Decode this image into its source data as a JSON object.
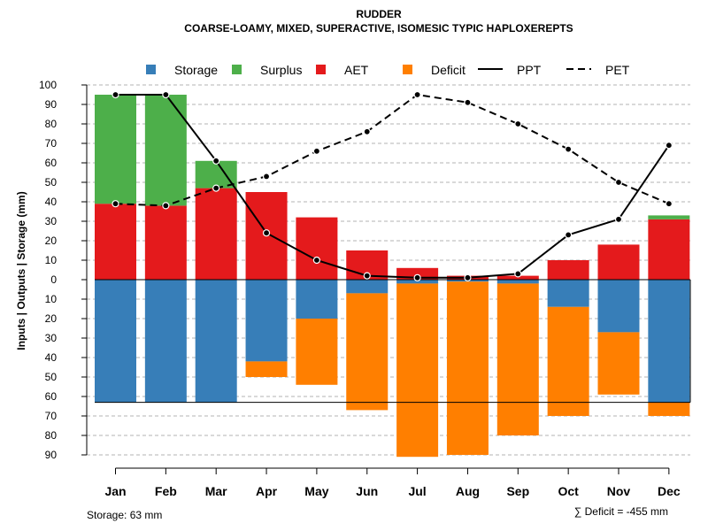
{
  "chart_data": {
    "type": "bar",
    "title": "RUDDER",
    "subtitle": "COARSE-LOAMY, MIXED, SUPERACTIVE, ISOMESIC TYPIC HAPLOXEREPTS",
    "ylabel": "Inputs | Outputs | Storage    (mm)",
    "categories": [
      "Jan",
      "Feb",
      "Mar",
      "Apr",
      "May",
      "Jun",
      "Jul",
      "Aug",
      "Sep",
      "Oct",
      "Nov",
      "Dec"
    ],
    "upper_ticks": [
      0,
      10,
      20,
      30,
      40,
      50,
      60,
      70,
      80,
      90,
      100
    ],
    "lower_ticks": [
      10,
      20,
      30,
      40,
      50,
      60,
      70,
      80,
      90
    ],
    "ylim": [
      -90,
      100
    ],
    "legend": [
      {
        "name": "Storage",
        "kind": "box",
        "color": "#377EB8"
      },
      {
        "name": "Surplus",
        "kind": "box",
        "color": "#4DAF4A"
      },
      {
        "name": "AET",
        "kind": "box",
        "color": "#E41A1C"
      },
      {
        "name": "Deficit",
        "kind": "box",
        "color": "#FF7F00"
      },
      {
        "name": "PPT",
        "kind": "solid",
        "color": "#000000"
      },
      {
        "name": "PET",
        "kind": "dashed",
        "color": "#000000"
      }
    ],
    "series": [
      {
        "name": "AET",
        "values": [
          39,
          38,
          47,
          45,
          32,
          15,
          6,
          2,
          2,
          10,
          18,
          31
        ]
      },
      {
        "name": "Surplus",
        "values": [
          56,
          57,
          14,
          0,
          0,
          0,
          0,
          0,
          0,
          0,
          0,
          2
        ]
      },
      {
        "name": "Storage",
        "values": [
          63,
          63,
          63,
          42,
          20,
          7,
          2,
          1,
          2,
          14,
          27,
          63
        ]
      },
      {
        "name": "Deficit",
        "values": [
          0,
          0,
          0,
          8,
          34,
          60,
          89,
          89,
          78,
          56,
          32,
          7
        ]
      },
      {
        "name": "PPT",
        "values": [
          95,
          95,
          61,
          24,
          10,
          2,
          1,
          1,
          3,
          23,
          31,
          69
        ]
      },
      {
        "name": "PET",
        "values": [
          39,
          38,
          47,
          53,
          66,
          76,
          95,
          91,
          80,
          67,
          50,
          39
        ]
      }
    ],
    "storage_capacity": 63,
    "footer_left": "Storage: 63 mm",
    "footer_right": "∑ Deficit = -455 mm"
  }
}
